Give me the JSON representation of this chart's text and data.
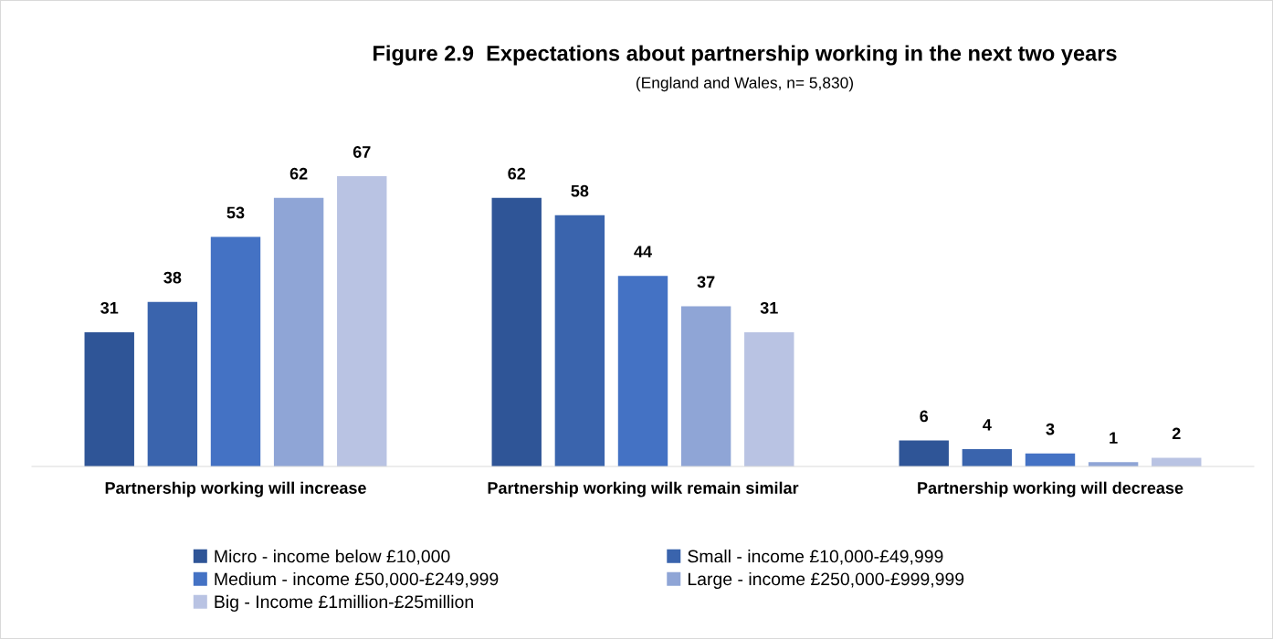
{
  "chart_data": {
    "type": "bar",
    "title": "Figure 2.9  Expectations about partnership working in the next two years",
    "subtitle": "(England and Wales, n= 5,830)",
    "categories": [
      "Partnership working will increase",
      "Partnership working wilk remain similar",
      "Partnership working will decrease"
    ],
    "series": [
      {
        "name": "Micro - income below £10,000",
        "color": "#2f5597",
        "values": [
          31,
          62,
          6
        ]
      },
      {
        "name": "Small - income £10,000-£49,999",
        "color": "#3a64ad",
        "values": [
          38,
          58,
          4
        ]
      },
      {
        "name": "Medium - income £50,000-£249,999",
        "color": "#4472c4",
        "values": [
          53,
          44,
          3
        ]
      },
      {
        "name": "Large - income £250,000-£999,999",
        "color": "#8fa5d6",
        "values": [
          62,
          37,
          1
        ]
      },
      {
        "name": "Big - Income £1million-£25million",
        "color": "#b9c3e3",
        "values": [
          67,
          31,
          2
        ]
      }
    ],
    "data_labels": true,
    "legend": "bottom",
    "grid": false
  }
}
